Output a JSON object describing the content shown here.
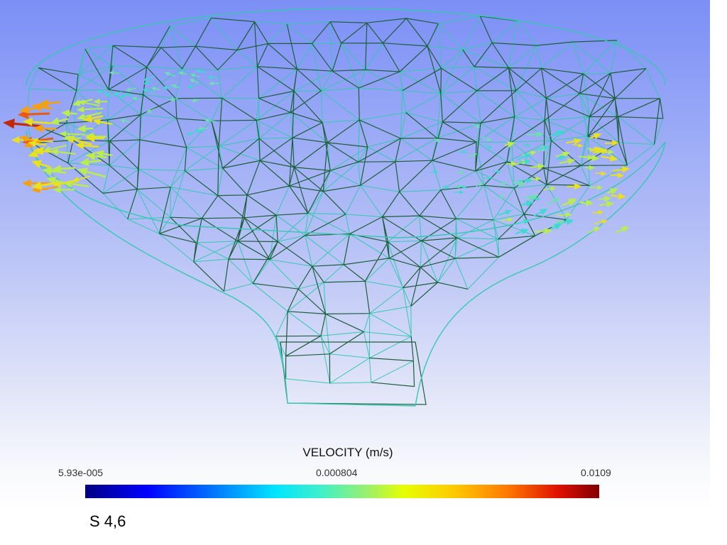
{
  "scene": {
    "background_top_color": "#7b8ff6",
    "background_bottom_color": "#ffffff",
    "mesh_colors": [
      "#1c5e3c",
      "#35c8b2"
    ],
    "vector_colors": [
      "#c02a0a",
      "#e85a10",
      "#f5a010",
      "#e8e020",
      "#b8ec50",
      "#6ee0b0",
      "#40d8d0"
    ]
  },
  "legend": {
    "title": "VELOCITY (m/s)",
    "tick_min": "5.93e-005",
    "tick_mid": "0.000804",
    "tick_max": "0.0109"
  },
  "caption": "S 4,6"
}
